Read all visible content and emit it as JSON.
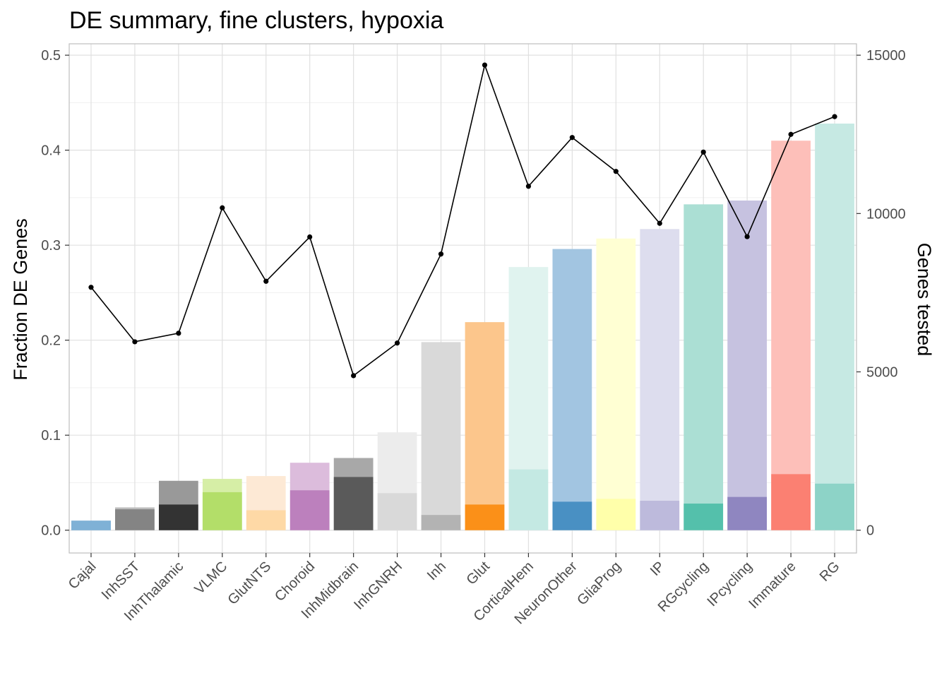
{
  "chart_data": {
    "type": "bar",
    "title": "DE summary, fine clusters, hypoxia",
    "ylabel": "Fraction DE Genes",
    "y2label": "Genes tested",
    "ylim": [
      -0.024,
      0.512
    ],
    "yticks": [
      0.0,
      0.1,
      0.2,
      0.3,
      0.4,
      0.5
    ],
    "ytick_labels": [
      "0.0",
      "0.1",
      "0.2",
      "0.3",
      "0.4",
      "0.5"
    ],
    "y2ticks": [
      0,
      5000,
      10000,
      15000
    ],
    "y2tick_labels": [
      "0",
      "5000",
      "10000",
      "15000"
    ],
    "y2_max_maps_to_y": 0.5,
    "y2_max": 15000,
    "grid": true,
    "categories": [
      "Cajal",
      "InhSST",
      "InhThalamic",
      "VLMC",
      "GlutNTS",
      "Choroid",
      "InhMidbrain",
      "InhGNRH",
      "Inh",
      "Glut",
      "CorticalHem",
      "NeuronOther",
      "GliaProg",
      "IP",
      "RGcycling",
      "IPcycling",
      "Immature",
      "RG"
    ],
    "series": [
      {
        "kind": "bar-total",
        "values": [
          0.01,
          0.024,
          0.052,
          0.054,
          0.057,
          0.071,
          0.076,
          0.103,
          0.198,
          0.219,
          0.277,
          0.296,
          0.307,
          0.317,
          0.343,
          0.347,
          0.41,
          0.428
        ]
      },
      {
        "kind": "bar-core",
        "values": [
          0.01,
          0.022,
          0.027,
          0.04,
          0.021,
          0.042,
          0.056,
          0.039,
          0.016,
          0.027,
          0.064,
          0.03,
          0.033,
          0.031,
          0.028,
          0.035,
          0.059,
          0.049
        ]
      },
      {
        "kind": "line",
        "axis": "secondary",
        "values": [
          7670,
          5950,
          6220,
          10180,
          7860,
          9260,
          4880,
          5910,
          8720,
          14690,
          10860,
          12400,
          11330,
          9690,
          11940,
          9270,
          12500,
          13060
        ]
      }
    ],
    "colors": {
      "core": [
        "#7fb1d6",
        "#848484",
        "#333333",
        "#b3de69",
        "#fed9a6",
        "#bc80bd",
        "#5a5a5a",
        "#d9d9d9",
        "#b3b3b3",
        "#fb9018",
        "#c4e9e3",
        "#4990c3",
        "#ffffaa",
        "#bdbadc",
        "#54c0ab",
        "#8f86c0",
        "#fb8072",
        "#8dd3c7"
      ],
      "total": [
        "#7fb1d6",
        "#bcbcbc",
        "#999999",
        "#d6eea6",
        "#fde9d5",
        "#dcbcdc",
        "#a8a8a8",
        "#ececec",
        "#d9d9d9",
        "#fcc68c",
        "#e0f3ef",
        "#a2c5e1",
        "#ffffd3",
        "#ddddee",
        "#abdfd4",
        "#c6c2e0",
        "#fdbfb9",
        "#c6e9e3"
      ],
      "line": "#000000",
      "grid_major": "#e0e0e0",
      "grid_minor": "#f0f0f0",
      "panel_border": "#bfbfbf"
    }
  }
}
